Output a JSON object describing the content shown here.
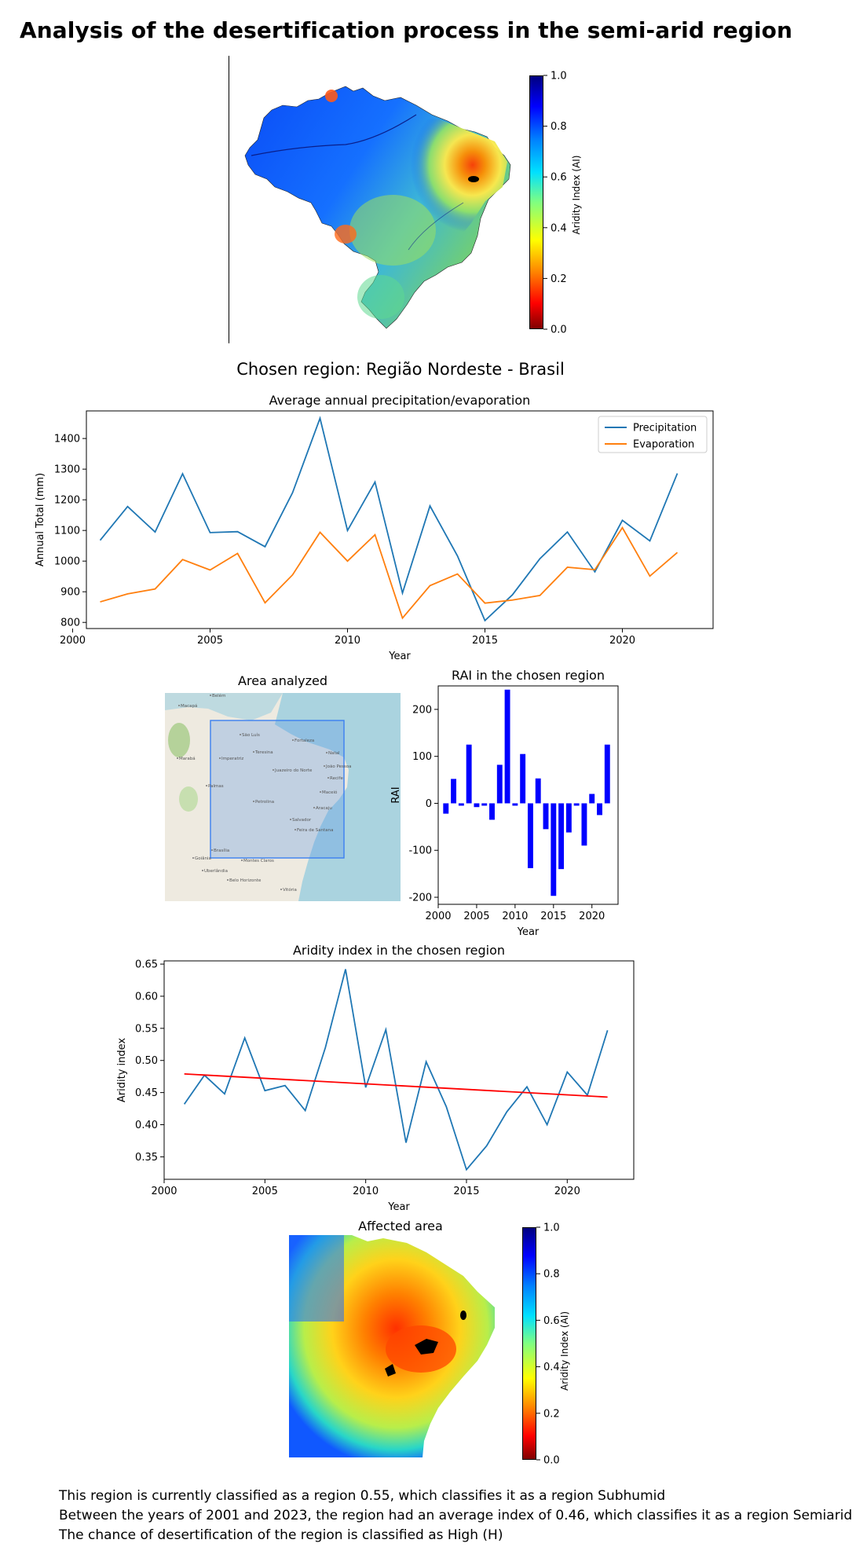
{
  "page": {
    "title": "Analysis of the desertification process in the semi-arid region",
    "subtitle": "Chosen region: Região Nordeste - Brasil",
    "footer_lines": [
      "This region is currently classified as a region 0.55, which classifies it as a region Subhumid",
      "Between the years of 2001 and 2023, the region had an average index of 0.46, which classifies it as a region Semiarid",
      "The chance of desertification of the region is classified as High (H)"
    ]
  },
  "colorbar_main": {
    "label": "Aridity Index (AI)",
    "ticks": [
      "0.0",
      "0.2",
      "0.4",
      "0.6",
      "0.8",
      "1.0"
    ]
  },
  "colorbar_affected": {
    "label": "Aridity Index (AI)",
    "ticks": [
      "0.0",
      "0.2",
      "0.4",
      "0.6",
      "0.8",
      "1.0"
    ]
  },
  "map_area": {
    "title": "Area analyzed",
    "cities": [
      "Macapá",
      "São Luís",
      "Teresina",
      "Fortaleza",
      "Natal",
      "João Pessoa",
      "Recife",
      "Maceió",
      "Aracaju",
      "Salvador",
      "Feira de Santana",
      "Palmas",
      "Goiânia",
      "Brasília",
      "Montes Claros",
      "Uberlândia",
      "Belo Horizonte",
      "Vitória",
      "Belém",
      "Marabá",
      "Imperatriz",
      "Petrolina",
      "Juazeiro do Norte"
    ]
  },
  "affected_title": "Affected area",
  "chart_data": [
    {
      "type": "line",
      "title": "Average annual precipitation/evaporation",
      "xlabel": "Year",
      "ylabel": "Annual Total (mm)",
      "x": [
        2001,
        2002,
        2003,
        2004,
        2005,
        2006,
        2007,
        2008,
        2009,
        2010,
        2011,
        2012,
        2013,
        2014,
        2015,
        2016,
        2017,
        2018,
        2019,
        2020,
        2021,
        2022
      ],
      "series": [
        {
          "name": "Precipitation",
          "color": "#1f77b4",
          "values": [
            1068,
            1178,
            1095,
            1285,
            1093,
            1096,
            1047,
            1223,
            1466,
            1100,
            1258,
            896,
            1180,
            1017,
            806,
            890,
            1008,
            1095,
            965,
            1133,
            1066,
            1286
          ]
        },
        {
          "name": "Evaporation",
          "color": "#ff7f0e",
          "values": [
            867,
            893,
            909,
            1005,
            971,
            1025,
            864,
            955,
            1094,
            1000,
            1086,
            814,
            920,
            958,
            863,
            873,
            888,
            980,
            972,
            1109,
            951,
            1028
          ]
        }
      ],
      "xlim": [
        2000.5,
        2023.3
      ],
      "ylim": [
        780,
        1490
      ],
      "xticks": [
        2000,
        2005,
        2010,
        2015,
        2020
      ],
      "yticks": [
        800,
        900,
        1000,
        1100,
        1200,
        1300,
        1400
      ],
      "legend": "top-right"
    },
    {
      "type": "bar",
      "title": "RAI in the chosen region",
      "xlabel": "Year",
      "ylabel": "RAI",
      "x": [
        2001,
        2002,
        2003,
        2004,
        2005,
        2006,
        2007,
        2008,
        2009,
        2010,
        2011,
        2012,
        2013,
        2014,
        2015,
        2016,
        2017,
        2018,
        2019,
        2020,
        2021,
        2022
      ],
      "values": [
        -22,
        52,
        -5,
        125,
        -8,
        -5,
        -35,
        82,
        242,
        -5,
        105,
        -138,
        53,
        -55,
        -197,
        -140,
        -62,
        -5,
        -90,
        20,
        -25,
        125
      ],
      "color": "#0000ff",
      "xlim": [
        2000,
        2023.4
      ],
      "ylim": [
        -215,
        250
      ],
      "xticks": [
        2000,
        2005,
        2010,
        2015,
        2020
      ],
      "yticks": [
        -200,
        -100,
        0,
        100,
        200
      ]
    },
    {
      "type": "line",
      "title": "Aridity index in the chosen region",
      "xlabel": "Year",
      "ylabel": "Aridity index",
      "x": [
        2001,
        2002,
        2003,
        2004,
        2005,
        2006,
        2007,
        2008,
        2009,
        2010,
        2011,
        2012,
        2013,
        2014,
        2015,
        2016,
        2017,
        2018,
        2019,
        2020,
        2021,
        2022
      ],
      "series": [
        {
          "name": "Aridity index",
          "color": "#1f77b4",
          "values": [
            0.432,
            0.477,
            0.448,
            0.535,
            0.453,
            0.461,
            0.422,
            0.52,
            0.642,
            0.458,
            0.548,
            0.372,
            0.498,
            0.428,
            0.33,
            0.367,
            0.42,
            0.459,
            0.4,
            0.482,
            0.446,
            0.547
          ]
        },
        {
          "name": "Trend",
          "color": "#ff0000",
          "values": [
            0.479,
            0.443
          ],
          "x": [
            2001,
            2022
          ]
        }
      ],
      "xlim": [
        2000,
        2023.3
      ],
      "ylim": [
        0.315,
        0.655
      ],
      "xticks": [
        2000,
        2005,
        2010,
        2015,
        2020
      ],
      "yticks": [
        0.35,
        0.4,
        0.45,
        0.5,
        0.55,
        0.6,
        0.65
      ]
    }
  ]
}
